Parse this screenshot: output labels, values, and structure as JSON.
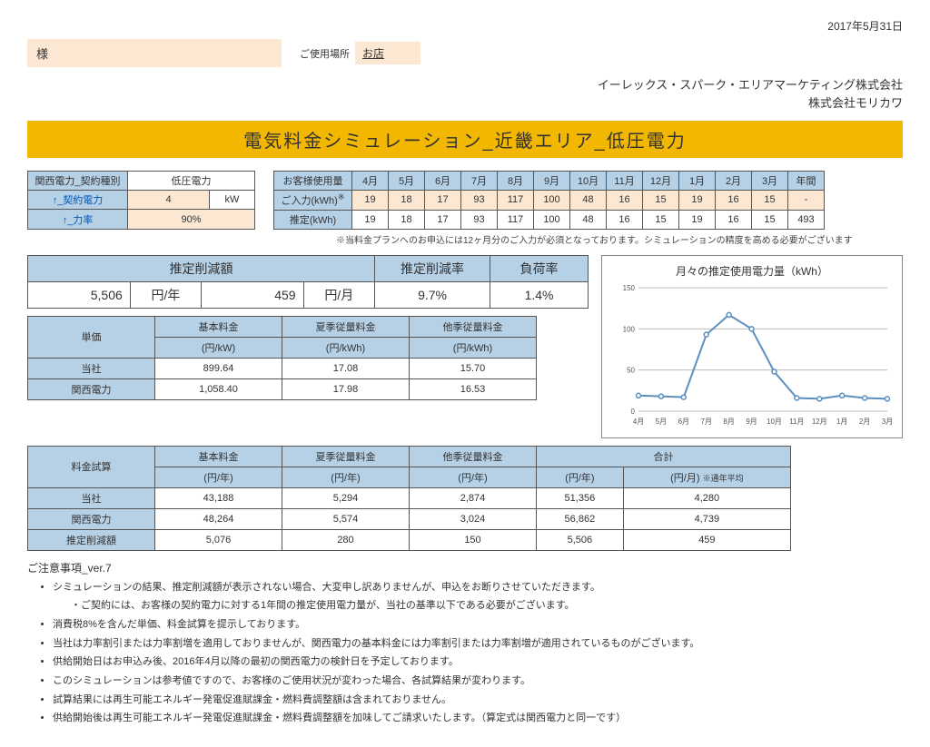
{
  "date": "2017年5月31日",
  "customer_name": "様",
  "place_label": "ご使用場所",
  "place_value": "お店",
  "company1": "イーレックス・スパーク・エリアマーケティング株式会社",
  "company2": "株式会社モリカワ",
  "title": "電気料金シミュレーション_近畿エリア_低圧電力",
  "contract": {
    "h1": "関西電力_契約種別",
    "h2": "低圧電力",
    "row1_label": "↑_契約電力",
    "row1_val": "4",
    "row1_unit": "kW",
    "row2_label": "↑_力率",
    "row2_val": "90%"
  },
  "usage": {
    "h": "お客様使用量",
    "months": [
      "4月",
      "5月",
      "6月",
      "7月",
      "8月",
      "9月",
      "10月",
      "11月",
      "12月",
      "1月",
      "2月",
      "3月",
      "年間"
    ],
    "r1_label": "ご入力(kWh)",
    "r1_sup": "※",
    "r1": [
      "19",
      "18",
      "17",
      "93",
      "117",
      "100",
      "48",
      "16",
      "15",
      "19",
      "16",
      "15",
      "-"
    ],
    "r2_label": "推定(kWh)",
    "r2": [
      "19",
      "18",
      "17",
      "93",
      "117",
      "100",
      "48",
      "16",
      "15",
      "19",
      "16",
      "15",
      "493"
    ]
  },
  "usage_note": "※当料金プランへのお申込には12ヶ月分のご入力が必須となっております。シミュレーションの精度を高める必要がございます",
  "reduction": {
    "h1": "推定削減額",
    "h2": "推定削減率",
    "h3": "負荷率",
    "v1": "5,506",
    "u1": "円/年",
    "v2": "459",
    "u2": "円/月",
    "v3": "9.7%",
    "v4": "1.4%"
  },
  "chart": {
    "title": "月々の推定使用電力量（kWh）",
    "ylim": [
      0,
      150
    ],
    "yticks": [
      0,
      50,
      100,
      150
    ],
    "xlabels": [
      "4月",
      "5月",
      "6月",
      "7月",
      "8月",
      "9月",
      "10月",
      "11月",
      "12月",
      "1月",
      "2月",
      "3月"
    ],
    "values": [
      19,
      18,
      17,
      93,
      117,
      100,
      48,
      16,
      15,
      19,
      16,
      15
    ],
    "line_color": "#5b8fbf",
    "grid_color": "#cccccc",
    "bg": "#ffffff"
  },
  "price": {
    "h_unit": "単価",
    "h1": "基本料金",
    "h1s": "(円/kW)",
    "h2": "夏季従量料金",
    "h2s": "(円/kWh)",
    "h3": "他季従量料金",
    "h3s": "(円/kWh)",
    "r1_label": "当社",
    "r1": [
      "899.64",
      "17.08",
      "15.70"
    ],
    "r2_label": "関西電力",
    "r2": [
      "1,058.40",
      "17.98",
      "16.53"
    ]
  },
  "trial": {
    "h0": "料金試算",
    "h1": "基本料金",
    "hs": "(円/年)",
    "h2": "夏季従量料金",
    "h3": "他季従量料金",
    "h4": "合計",
    "avg_note": "※通年平均",
    "hm": "(円/月)",
    "r1_label": "当社",
    "r1": [
      "43,188",
      "5,294",
      "2,874",
      "51,356",
      "4,280"
    ],
    "r2_label": "関西電力",
    "r2": [
      "48,264",
      "5,574",
      "3,024",
      "56,862",
      "4,739"
    ],
    "r3_label": "推定削減額",
    "r3": [
      "5,076",
      "280",
      "150",
      "5,506",
      "459"
    ]
  },
  "notes_title": "ご注意事項_ver.7",
  "notes": [
    "シミュレーションの結果、推定削減額が表示されない場合、大変申し訳ありませんが、申込をお断りさせていただきます。",
    "・ご契約には、お客様の契約電力に対する1年間の推定使用電力量が、当社の基準以下である必要がございます。",
    "消費税8%を含んだ単価、料金試算を提示しております。",
    "当社は力率割引または力率割増を適用しておりませんが、関西電力の基本料金には力率割引または力率割増が適用されているものがございます。",
    "供給開始日はお申込み後、2016年4月以降の最初の関西電力の検針日を予定しております。",
    "このシミュレーションは参考値ですので、お客様のご使用状況が変わった場合、各試算結果が変わります。",
    "試算結果には再生可能エネルギー発電促進賦課金・燃料費調整額は含まれておりません。",
    "供給開始後は再生可能エネルギー発電促進賦課金・燃料費調整額を加味してご請求いたします。（算定式は関西電力と同一です）"
  ]
}
